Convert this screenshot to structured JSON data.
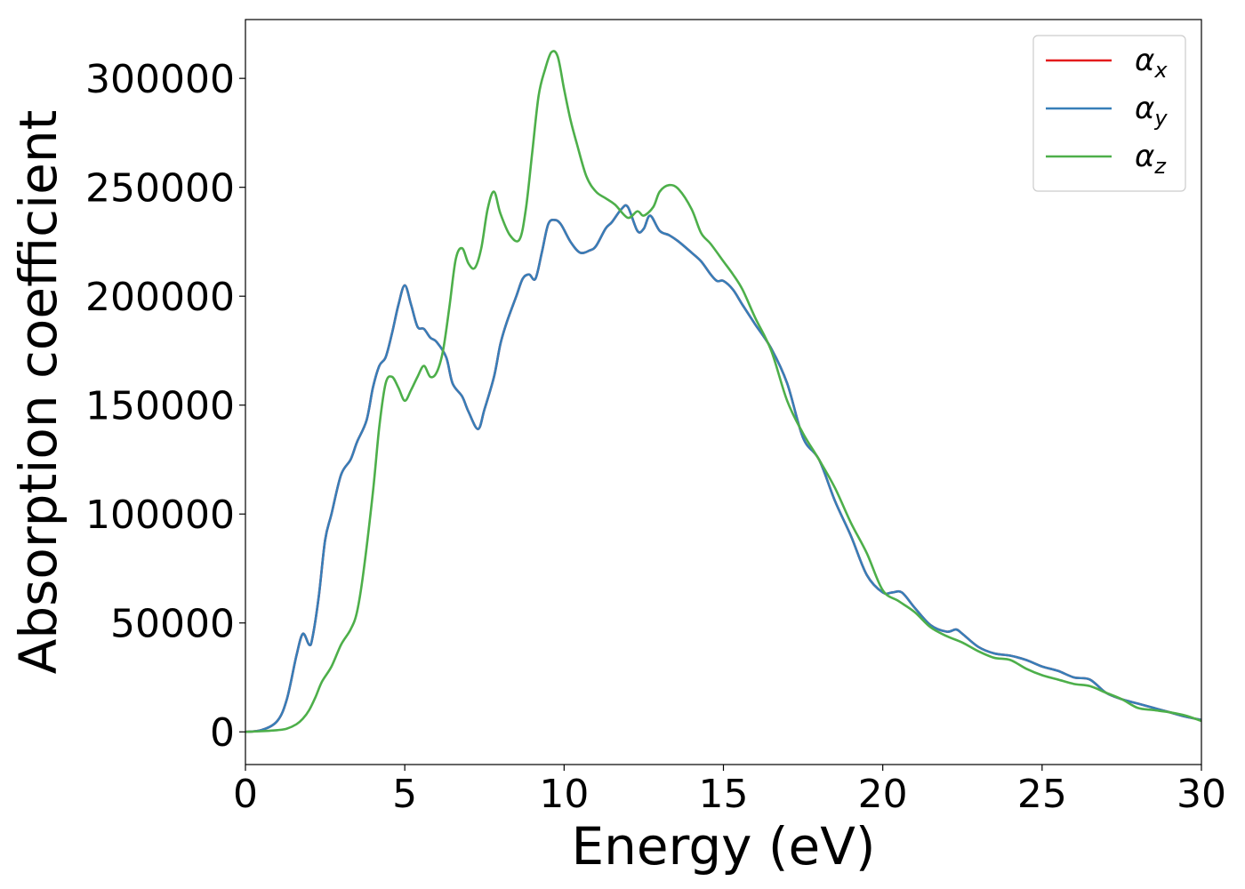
{
  "chart_data": {
    "type": "line",
    "title": "",
    "xlabel": "Energy (eV)",
    "ylabel": "Absorption coefficient",
    "xlim": [
      0,
      30
    ],
    "ylim": [
      -15000,
      327000
    ],
    "xticks": [
      0,
      5,
      10,
      15,
      20,
      25,
      30
    ],
    "xtick_labels": [
      "0",
      "5",
      "10",
      "15",
      "20",
      "25",
      "30"
    ],
    "yticks": [
      0,
      50000,
      100000,
      150000,
      200000,
      250000,
      300000
    ],
    "ytick_labels": [
      "0",
      "50000",
      "100000",
      "150000",
      "200000",
      "250000",
      "300000"
    ],
    "grid": false,
    "legend_position": "top-right",
    "series": [
      {
        "name": "α_x",
        "symbol": "α",
        "subscript": "x",
        "color": "#e41a1c",
        "x": [
          0,
          0.5,
          1.0,
          1.3,
          1.6,
          1.8,
          2.0,
          2.1,
          2.3,
          2.5,
          2.7,
          3.0,
          3.3,
          3.5,
          3.8,
          4.0,
          4.2,
          4.4,
          4.6,
          4.8,
          5.0,
          5.2,
          5.4,
          5.6,
          5.8,
          6.0,
          6.3,
          6.5,
          6.8,
          7.0,
          7.3,
          7.5,
          7.8,
          8.0,
          8.2,
          8.5,
          8.7,
          8.9,
          9.1,
          9.3,
          9.5,
          9.7,
          9.9,
          10.2,
          10.5,
          10.8,
          11.0,
          11.3,
          11.5,
          11.8,
          12.0,
          12.3,
          12.5,
          12.7,
          13.0,
          13.3,
          13.6,
          14.0,
          14.3,
          14.6,
          14.8,
          15.0,
          15.3,
          15.6,
          16.0,
          16.5,
          17.0,
          17.5,
          18.0,
          18.5,
          19.0,
          19.5,
          20.0,
          20.3,
          20.6,
          21.0,
          21.5,
          22.0,
          22.3,
          22.5,
          23.0,
          23.5,
          24.0,
          24.5,
          25.0,
          25.5,
          26.0,
          26.5,
          27.0,
          27.5,
          28.0,
          28.5,
          29.0,
          29.5,
          30.0
        ],
        "y": [
          0,
          800,
          5000,
          15000,
          35000,
          45000,
          40000,
          43000,
          62000,
          88000,
          100000,
          118000,
          125000,
          133000,
          143000,
          158000,
          168000,
          172000,
          183000,
          196000,
          205000,
          196000,
          186000,
          185000,
          181000,
          179000,
          172000,
          160000,
          154000,
          147000,
          139000,
          148000,
          163000,
          178000,
          188000,
          200000,
          208000,
          210000,
          208000,
          220000,
          233000,
          235000,
          233000,
          225000,
          220000,
          221000,
          223000,
          231000,
          234000,
          240000,
          241000,
          230000,
          231000,
          237000,
          230000,
          228000,
          225000,
          220000,
          216000,
          210000,
          207000,
          207000,
          203000,
          196000,
          187000,
          176000,
          160000,
          135000,
          125000,
          106000,
          90000,
          72000,
          64000,
          64000,
          64000,
          57000,
          49000,
          46000,
          47000,
          45000,
          39000,
          36000,
          35000,
          33000,
          30000,
          28000,
          25000,
          24000,
          18000,
          15000,
          13000,
          11000,
          9000,
          7000,
          5500
        ]
      },
      {
        "name": "α_y",
        "symbol": "α",
        "subscript": "y",
        "color": "#377eb8",
        "x": [
          0,
          0.5,
          1.0,
          1.3,
          1.6,
          1.8,
          2.0,
          2.1,
          2.3,
          2.5,
          2.7,
          3.0,
          3.3,
          3.5,
          3.8,
          4.0,
          4.2,
          4.4,
          4.6,
          4.8,
          5.0,
          5.2,
          5.4,
          5.6,
          5.8,
          6.0,
          6.3,
          6.5,
          6.8,
          7.0,
          7.3,
          7.5,
          7.8,
          8.0,
          8.2,
          8.5,
          8.7,
          8.9,
          9.1,
          9.3,
          9.5,
          9.7,
          9.9,
          10.2,
          10.5,
          10.8,
          11.0,
          11.3,
          11.5,
          11.8,
          12.0,
          12.3,
          12.5,
          12.7,
          13.0,
          13.3,
          13.6,
          14.0,
          14.3,
          14.6,
          14.8,
          15.0,
          15.3,
          15.6,
          16.0,
          16.5,
          17.0,
          17.5,
          18.0,
          18.5,
          19.0,
          19.5,
          20.0,
          20.3,
          20.6,
          21.0,
          21.5,
          22.0,
          22.3,
          22.5,
          23.0,
          23.5,
          24.0,
          24.5,
          25.0,
          25.5,
          26.0,
          26.5,
          27.0,
          27.5,
          28.0,
          28.5,
          29.0,
          29.5,
          30.0
        ],
        "y": [
          0,
          800,
          5000,
          15000,
          35000,
          45000,
          40000,
          43000,
          62000,
          88000,
          100000,
          118000,
          125000,
          133000,
          143000,
          158000,
          168000,
          172000,
          183000,
          196000,
          205000,
          196000,
          186000,
          185000,
          181000,
          179000,
          172000,
          160000,
          154000,
          147000,
          139000,
          148000,
          163000,
          178000,
          188000,
          200000,
          208000,
          210000,
          208000,
          220000,
          233000,
          235000,
          233000,
          225000,
          220000,
          221000,
          223000,
          231000,
          234000,
          240000,
          241000,
          230000,
          231000,
          237000,
          230000,
          228000,
          225000,
          220000,
          216000,
          210000,
          207000,
          207000,
          203000,
          196000,
          187000,
          176000,
          160000,
          135000,
          125000,
          106000,
          90000,
          72000,
          64000,
          64000,
          64000,
          57000,
          49000,
          46000,
          47000,
          45000,
          39000,
          36000,
          35000,
          33000,
          30000,
          28000,
          25000,
          24000,
          18000,
          15000,
          13000,
          11000,
          9000,
          7000,
          5500
        ]
      },
      {
        "name": "α_z",
        "symbol": "α",
        "subscript": "z",
        "color": "#4daf4a",
        "x": [
          0,
          0.5,
          1.0,
          1.3,
          1.6,
          1.8,
          2.0,
          2.2,
          2.4,
          2.7,
          3.0,
          3.3,
          3.5,
          3.7,
          4.0,
          4.2,
          4.4,
          4.6,
          4.8,
          5.0,
          5.2,
          5.4,
          5.6,
          5.8,
          6.0,
          6.2,
          6.4,
          6.6,
          6.8,
          7.0,
          7.2,
          7.4,
          7.6,
          7.8,
          8.0,
          8.3,
          8.6,
          8.8,
          9.0,
          9.2,
          9.4,
          9.6,
          9.8,
          10.0,
          10.2,
          10.4,
          10.7,
          11.0,
          11.3,
          11.6,
          12.0,
          12.3,
          12.5,
          12.8,
          13.0,
          13.3,
          13.6,
          14.0,
          14.3,
          14.6,
          15.0,
          15.3,
          15.6,
          16.0,
          16.5,
          17.0,
          17.5,
          18.0,
          18.5,
          19.0,
          19.5,
          20.0,
          20.5,
          21.0,
          21.5,
          22.0,
          22.5,
          23.0,
          23.5,
          24.0,
          24.5,
          25.0,
          25.5,
          26.0,
          26.5,
          27.0,
          27.5,
          28.0,
          28.5,
          29.0,
          29.5,
          30.0
        ],
        "y": [
          0,
          300,
          800,
          1500,
          3500,
          6000,
          10000,
          16000,
          23000,
          30000,
          40000,
          47000,
          55000,
          73000,
          110000,
          140000,
          160000,
          163000,
          158000,
          152000,
          157000,
          163000,
          168000,
          163000,
          165000,
          175000,
          195000,
          217000,
          222000,
          215000,
          213000,
          222000,
          240000,
          248000,
          238000,
          228000,
          226000,
          240000,
          266000,
          292000,
          304000,
          312000,
          310000,
          295000,
          281000,
          270000,
          255000,
          248000,
          245000,
          242000,
          236000,
          239000,
          237000,
          241000,
          248000,
          251000,
          249000,
          240000,
          229000,
          224000,
          216000,
          210000,
          203000,
          190000,
          175000,
          152000,
          137000,
          125000,
          112000,
          96000,
          82000,
          65000,
          60000,
          55000,
          48000,
          44000,
          41000,
          37000,
          34000,
          33000,
          29000,
          26000,
          24000,
          22000,
          21000,
          18000,
          15000,
          11000,
          10000,
          9000,
          7500,
          5000
        ]
      }
    ]
  }
}
